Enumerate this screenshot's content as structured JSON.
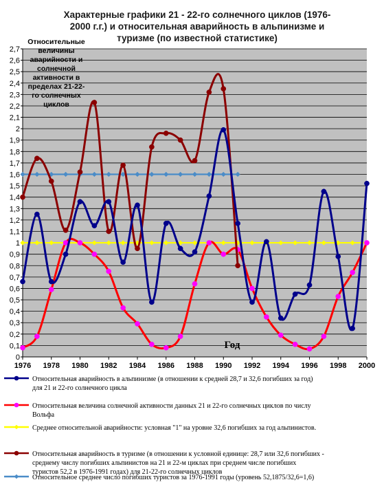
{
  "chart_data": {
    "type": "line",
    "title": [
      "Характерные графики  21 - 22-го солнечного циклов (1976-",
      "2000 г.г.) и относительная аварийность  в  альпинизме и",
      "туризме (по известной статистике)"
    ],
    "annotation": [
      "Относительные",
      "величины",
      "аварийности и",
      "солнечной",
      "активности в",
      "пределах 21-22-",
      "го солнечных",
      "циклов"
    ],
    "xlabel": "Год",
    "ylabel": "",
    "xlim": [
      1976,
      2000
    ],
    "ylim": [
      0,
      2.7
    ],
    "x_ticks": [
      "1976",
      "1978",
      "1980",
      "1982",
      "1984",
      "1986",
      "1988",
      "1990",
      "1992",
      "1994",
      "1996",
      "1998",
      "2000"
    ],
    "y_ticks": [
      "0",
      "0,1",
      "0,2",
      "0,3",
      "0,4",
      "0,5",
      "0,6",
      "0,7",
      "0,8",
      "0,9",
      "1",
      "1,1",
      "1,2",
      "1,3",
      "1,4",
      "1,5",
      "1,6",
      "1,7",
      "1,8",
      "1,9",
      "2",
      "2,1",
      "2,2",
      "2,3",
      "2,4",
      "2,5",
      "2,6",
      "2,7"
    ],
    "grid": true,
    "legend_position": "bottom",
    "series": [
      {
        "name": "Относительная аварийность в альпинизме (в отношении к средней 28,7 и 32,6 погибших за год) для 21 и  22-го солнечного цикла",
        "legend_lines": [
          "Относительная аварийность в альпинизме (в отношении к средней 28,7 и 32,6 погибших за год)",
          "для 21 и  22-го солнечного цикла"
        ],
        "color": "#00008b",
        "marker": "circle",
        "x": [
          1976,
          1977,
          1978,
          1979,
          1980,
          1981,
          1982,
          1983,
          1984,
          1985,
          1986,
          1987,
          1988,
          1989,
          1990,
          1991,
          1992,
          1993,
          1994,
          1995,
          1996,
          1997,
          1998,
          1999,
          2000
        ],
        "values": [
          0.66,
          1.25,
          0.66,
          0.9,
          1.36,
          1.15,
          1.36,
          0.83,
          1.33,
          0.48,
          1.17,
          0.95,
          0.92,
          1.41,
          1.99,
          1.17,
          0.48,
          1.01,
          0.34,
          0.55,
          0.63,
          1.45,
          0.88,
          0.25,
          1.52
        ]
      },
      {
        "name": "Относительная величина солнечной активности данных 21 и 22-го солнечных циклов по числу Вольфа",
        "legend_lines": [
          "Относительная величина солнечной активности данных 21 и 22-го солнечных циклов по числу",
          "Вольфа"
        ],
        "color": "#ff0000",
        "marker_color": "#ff00ff",
        "marker": "circle",
        "x": [
          1976,
          1977,
          1978,
          1979,
          1980,
          1981,
          1982,
          1983,
          1984,
          1985,
          1986,
          1987,
          1988,
          1989,
          1990,
          1991,
          1992,
          1993,
          1994,
          1995,
          1996,
          1997,
          1998,
          1999,
          2000
        ],
        "values": [
          0.08,
          0.18,
          0.59,
          1.0,
          1.0,
          0.9,
          0.75,
          0.43,
          0.29,
          0.11,
          0.08,
          0.18,
          0.64,
          1.0,
          0.9,
          0.94,
          0.6,
          0.35,
          0.19,
          0.11,
          0.07,
          0.18,
          0.53,
          0.74,
          1.0
        ]
      },
      {
        "name": "Среднее относительной аварийности: условная \"1\" на уровне 32,6 погибших за год альпинистов.",
        "legend_lines": [
          "Среднее относительной аварийности: условная \"1\" на уровне 32,6 погибших за год альпинистов."
        ],
        "color": "#ffff00",
        "marker": "diamond",
        "x": [
          1976,
          1977,
          1978,
          1979,
          1980,
          1981,
          1982,
          1983,
          1984,
          1985,
          1986,
          1987,
          1988,
          1989,
          1990,
          1991,
          1992,
          1993,
          1994,
          1995,
          1996,
          1997,
          1998,
          1999,
          2000
        ],
        "values": [
          1,
          1,
          1,
          1,
          1,
          1,
          1,
          1,
          1,
          1,
          1,
          1,
          1,
          1,
          1,
          1,
          1,
          1,
          1,
          1,
          1,
          1,
          1,
          1,
          1
        ]
      },
      {
        "name": "Относительная аварийность в туризме (в отношении к условной единице: 28,7 или 32,6 погибших - среднему числу погибших альпинистов на 21 и 22-м циклах  при среднем числе погибших туристов 52,2 в 1976-1991 годах) для 21-22-го солнечных циклов",
        "legend_lines": [
          "Относительная аварийность в туризме (в отношении к условной единице: 28,7 или 32,6 погибших -",
          "среднему числу погибших альпинистов на 21 и 22-м циклах  при среднем числе погибших",
          "туристов 52,2 в 1976-1991 годах) для 21-22-го солнечных циклов"
        ],
        "color": "#8b0000",
        "marker": "circle",
        "x": [
          1976,
          1977,
          1978,
          1979,
          1980,
          1981,
          1982,
          1983,
          1984,
          1985,
          1986,
          1987,
          1988,
          1989,
          1990,
          1991
        ],
        "values": [
          1.4,
          1.74,
          1.54,
          1.11,
          1.62,
          2.23,
          1.1,
          1.68,
          0.95,
          1.84,
          1.96,
          1.9,
          1.72,
          2.32,
          2.35,
          0.8
        ]
      },
      {
        "name": "Относительное среднее число  погибших туристов за 1976-1991 годы (уровень 52,1875/32,6=1,6)",
        "legend_lines": [
          "Относительное среднее число  погибших туристов за 1976-1991 годы (уровень 52,1875/32,6=1,6)"
        ],
        "color": "#4a8cc8",
        "marker": "diamond",
        "x": [
          1976,
          1977,
          1978,
          1979,
          1980,
          1981,
          1982,
          1983,
          1984,
          1985,
          1986,
          1987,
          1988,
          1989,
          1990,
          1991
        ],
        "values": [
          1.6,
          1.6,
          1.6,
          1.6,
          1.6,
          1.6,
          1.6,
          1.6,
          1.6,
          1.6,
          1.6,
          1.6,
          1.6,
          1.6,
          1.6,
          1.6
        ]
      }
    ]
  }
}
